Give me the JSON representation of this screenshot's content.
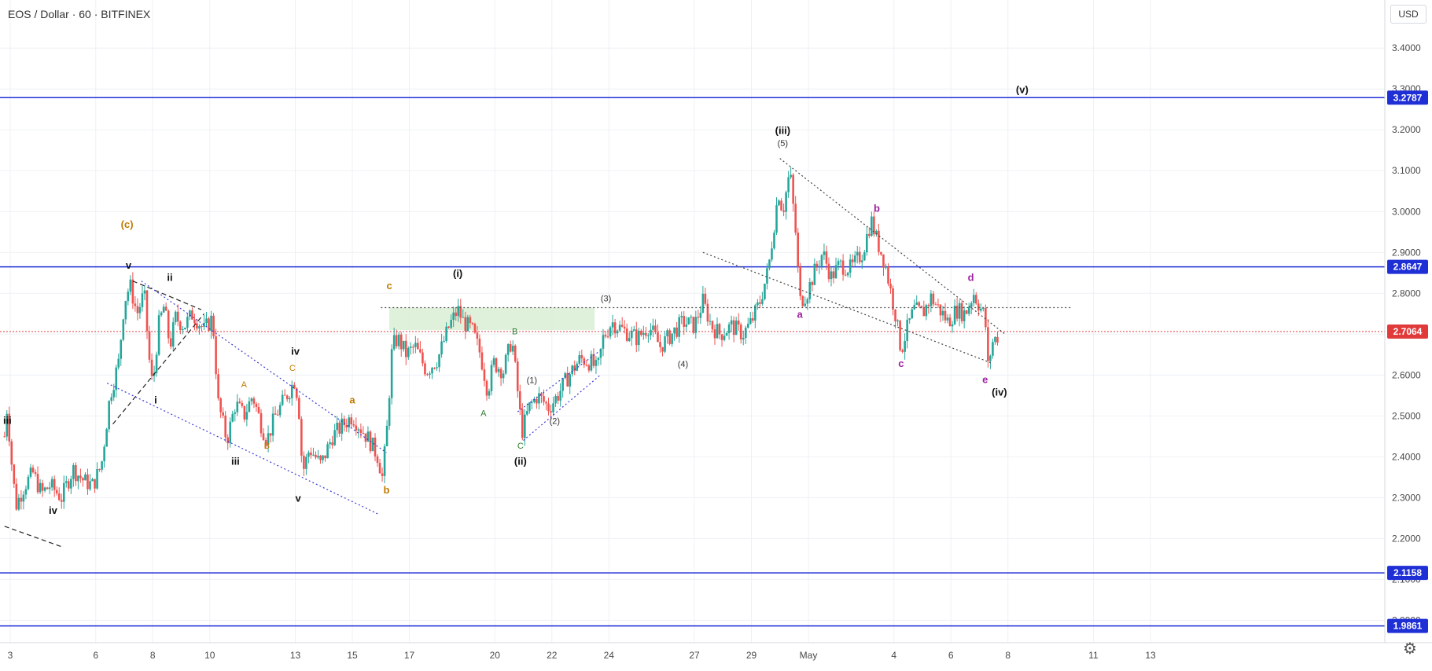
{
  "header": {
    "title": "EOS / Dollar · 60 · BITFINEX",
    "currency": "USD"
  },
  "chart_data": {
    "type": "candlestick",
    "title": "EOS / Dollar · 60 · BITFINEX",
    "ylim": [
      1.97,
      3.46
    ],
    "y_ticks": [
      "3.4000",
      "3.3000",
      "3.2000",
      "3.1000",
      "3.0000",
      "2.9000",
      "2.8000",
      "2.7000",
      "2.6000",
      "2.5000",
      "2.4000",
      "2.3000",
      "2.2000",
      "2.1000",
      "2.0000"
    ],
    "x_ticks": [
      {
        "label": "3",
        "day": 3
      },
      {
        "label": "6",
        "day": 6
      },
      {
        "label": "8",
        "day": 8
      },
      {
        "label": "10",
        "day": 10
      },
      {
        "label": "13",
        "day": 13
      },
      {
        "label": "15",
        "day": 15
      },
      {
        "label": "17",
        "day": 17
      },
      {
        "label": "20",
        "day": 20
      },
      {
        "label": "22",
        "day": 22
      },
      {
        "label": "24",
        "day": 24
      },
      {
        "label": "27",
        "day": 27
      },
      {
        "label": "29",
        "day": 29
      },
      {
        "label": "May",
        "day": 31
      },
      {
        "label": "4",
        "day": 34
      },
      {
        "label": "6",
        "day": 36
      },
      {
        "label": "8",
        "day": 38
      },
      {
        "label": "11",
        "day": 41
      },
      {
        "label": "13",
        "day": 43
      }
    ],
    "horizontal_levels": [
      {
        "value": 3.2787,
        "label": "3.2787",
        "color": "#1f2fd6"
      },
      {
        "value": 2.8647,
        "label": "2.8647",
        "color": "#1f2fd6"
      },
      {
        "value": 2.1158,
        "label": "2.1158",
        "color": "#1f2fd6"
      },
      {
        "value": 1.9861,
        "label": "1.9861",
        "color": "#1f2fd6"
      }
    ],
    "current_price": {
      "value": 2.7064,
      "label": "2.7064",
      "color": "#e03a3a"
    },
    "price_path": [
      [
        2.8,
        2.45
      ],
      [
        2.9,
        2.53
      ],
      [
        3.0,
        2.42
      ],
      [
        3.2,
        2.28
      ],
      [
        3.5,
        2.33
      ],
      [
        3.8,
        2.36
      ],
      [
        4.1,
        2.31
      ],
      [
        4.4,
        2.33
      ],
      [
        4.8,
        2.3
      ],
      [
        5.2,
        2.37
      ],
      [
        5.6,
        2.34
      ],
      [
        5.9,
        2.33
      ],
      [
        6.2,
        2.38
      ],
      [
        6.5,
        2.55
      ],
      [
        6.8,
        2.63
      ],
      [
        7.0,
        2.78
      ],
      [
        7.2,
        2.82
      ],
      [
        7.45,
        2.75
      ],
      [
        7.7,
        2.8
      ],
      [
        7.9,
        2.62
      ],
      [
        8.0,
        2.57
      ],
      [
        8.2,
        2.72
      ],
      [
        8.4,
        2.77
      ],
      [
        8.6,
        2.67
      ],
      [
        8.8,
        2.74
      ],
      [
        9.1,
        2.72
      ],
      [
        9.4,
        2.75
      ],
      [
        9.8,
        2.71
      ],
      [
        10.1,
        2.74
      ],
      [
        10.3,
        2.53
      ],
      [
        10.6,
        2.44
      ],
      [
        10.9,
        2.53
      ],
      [
        11.2,
        2.5
      ],
      [
        11.5,
        2.55
      ],
      [
        11.8,
        2.48
      ],
      [
        12.0,
        2.44
      ],
      [
        12.3,
        2.5
      ],
      [
        12.7,
        2.55
      ],
      [
        13.0,
        2.59
      ],
      [
        13.15,
        2.5
      ],
      [
        13.25,
        2.36
      ],
      [
        13.5,
        2.42
      ],
      [
        13.9,
        2.38
      ],
      [
        14.3,
        2.45
      ],
      [
        14.7,
        2.48
      ],
      [
        15.0,
        2.5
      ],
      [
        15.3,
        2.47
      ],
      [
        15.6,
        2.44
      ],
      [
        15.9,
        2.4
      ],
      [
        16.05,
        2.35
      ],
      [
        16.2,
        2.45
      ],
      [
        16.4,
        2.67
      ],
      [
        16.6,
        2.69
      ],
      [
        16.9,
        2.65
      ],
      [
        17.2,
        2.67
      ],
      [
        17.6,
        2.61
      ],
      [
        18.0,
        2.64
      ],
      [
        18.4,
        2.72
      ],
      [
        18.7,
        2.76
      ],
      [
        18.9,
        2.73
      ],
      [
        19.2,
        2.71
      ],
      [
        19.5,
        2.65
      ],
      [
        19.75,
        2.56
      ],
      [
        19.95,
        2.63
      ],
      [
        20.3,
        2.61
      ],
      [
        20.6,
        2.69
      ],
      [
        20.8,
        2.56
      ],
      [
        20.95,
        2.46
      ],
      [
        21.2,
        2.52
      ],
      [
        21.5,
        2.55
      ],
      [
        21.9,
        2.52
      ],
      [
        22.2,
        2.55
      ],
      [
        22.6,
        2.6
      ],
      [
        23.0,
        2.64
      ],
      [
        23.4,
        2.63
      ],
      [
        23.6,
        2.61
      ],
      [
        23.8,
        2.69
      ],
      [
        24.1,
        2.73
      ],
      [
        24.5,
        2.71
      ],
      [
        25.0,
        2.69
      ],
      [
        25.4,
        2.72
      ],
      [
        25.8,
        2.67
      ],
      [
        26.2,
        2.7
      ],
      [
        26.6,
        2.73
      ],
      [
        27.0,
        2.72
      ],
      [
        27.3,
        2.78
      ],
      [
        27.6,
        2.72
      ],
      [
        27.9,
        2.7
      ],
      [
        28.3,
        2.72
      ],
      [
        28.7,
        2.7
      ],
      [
        29.0,
        2.73
      ],
      [
        29.3,
        2.78
      ],
      [
        29.6,
        2.86
      ],
      [
        29.8,
        2.97
      ],
      [
        29.95,
        3.05
      ],
      [
        30.1,
        3.0
      ],
      [
        30.35,
        3.1
      ],
      [
        30.55,
        2.95
      ],
      [
        30.7,
        2.78
      ],
      [
        30.95,
        2.8
      ],
      [
        31.2,
        2.85
      ],
      [
        31.5,
        2.9
      ],
      [
        31.8,
        2.84
      ],
      [
        32.1,
        2.87
      ],
      [
        32.5,
        2.86
      ],
      [
        32.9,
        2.9
      ],
      [
        33.2,
        2.98
      ],
      [
        33.4,
        2.93
      ],
      [
        33.7,
        2.87
      ],
      [
        33.9,
        2.8
      ],
      [
        34.05,
        2.75
      ],
      [
        34.25,
        2.66
      ],
      [
        34.45,
        2.71
      ],
      [
        34.7,
        2.76
      ],
      [
        35.0,
        2.75
      ],
      [
        35.3,
        2.79
      ],
      [
        35.6,
        2.76
      ],
      [
        35.9,
        2.73
      ],
      [
        36.2,
        2.76
      ],
      [
        36.5,
        2.75
      ],
      [
        36.8,
        2.8
      ],
      [
        37.0,
        2.77
      ],
      [
        37.2,
        2.74
      ],
      [
        37.3,
        2.62
      ],
      [
        37.45,
        2.68
      ],
      [
        37.7,
        2.7
      ]
    ],
    "trendlines": [
      {
        "from": [
          7.3,
          2.83
        ],
        "to": [
          9.7,
          2.76
        ],
        "style": "dashed",
        "color": "#222222"
      },
      {
        "from": [
          6.6,
          2.48
        ],
        "to": [
          9.8,
          2.75
        ],
        "style": "dashed",
        "color": "#222222"
      },
      {
        "from": [
          2.8,
          2.23
        ],
        "to": [
          4.8,
          2.18
        ],
        "style": "dashed",
        "color": "#222222"
      },
      {
        "from": [
          7.6,
          2.83
        ],
        "to": [
          16.2,
          2.41
        ],
        "style": "dotted",
        "color": "#3b3bd6"
      },
      {
        "from": [
          6.4,
          2.58
        ],
        "to": [
          15.9,
          2.26
        ],
        "style": "dotted",
        "color": "#3b3bd6"
      },
      {
        "from": [
          20.8,
          2.51
        ],
        "to": [
          23.7,
          2.66
        ],
        "style": "dotted",
        "color": "#3b3bd6"
      },
      {
        "from": [
          21.0,
          2.44
        ],
        "to": [
          23.7,
          2.6
        ],
        "style": "dotted",
        "color": "#3b3bd6"
      },
      {
        "from": [
          30.0,
          3.13
        ],
        "to": [
          37.9,
          2.7
        ],
        "style": "dotted",
        "color": "#444444"
      },
      {
        "from": [
          27.3,
          2.9
        ],
        "to": [
          37.4,
          2.63
        ],
        "style": "dotted",
        "color": "#444444"
      },
      {
        "from": [
          16.0,
          2.765
        ],
        "to": [
          40.2,
          2.765
        ],
        "style": "dotted",
        "color": "#555555"
      }
    ],
    "zones": [
      {
        "x0": 16.3,
        "x1": 23.5,
        "y0": 2.71,
        "y1": 2.765,
        "color": "#d9efd3"
      }
    ],
    "annotations": [
      {
        "text": "iii",
        "x": 2.9,
        "y": 2.48,
        "color": "#111111",
        "bold": true
      },
      {
        "text": "iv",
        "x": 4.5,
        "y": 2.26,
        "color": "#111111",
        "bold": true
      },
      {
        "text": "(c)",
        "x": 7.1,
        "y": 2.96,
        "color": "#c07a00",
        "bold": true
      },
      {
        "text": "v",
        "x": 7.15,
        "y": 2.86,
        "color": "#111111",
        "bold": true
      },
      {
        "text": "ii",
        "x": 8.6,
        "y": 2.83,
        "color": "#111111",
        "bold": true
      },
      {
        "text": "i",
        "x": 8.1,
        "y": 2.53,
        "color": "#111111",
        "bold": true
      },
      {
        "text": "A",
        "x": 11.2,
        "y": 2.57,
        "color": "#c07a00",
        "bold": false
      },
      {
        "text": "C",
        "x": 12.9,
        "y": 2.61,
        "color": "#c07a00",
        "bold": false
      },
      {
        "text": "B",
        "x": 12.0,
        "y": 2.42,
        "color": "#c07a00",
        "bold": false
      },
      {
        "text": "iii",
        "x": 10.9,
        "y": 2.38,
        "color": "#111111",
        "bold": true
      },
      {
        "text": "iv",
        "x": 13.0,
        "y": 2.65,
        "color": "#111111",
        "bold": true
      },
      {
        "text": "v",
        "x": 13.1,
        "y": 2.29,
        "color": "#111111",
        "bold": true
      },
      {
        "text": "a",
        "x": 15.0,
        "y": 2.53,
        "color": "#c07a00",
        "bold": true
      },
      {
        "text": "b",
        "x": 16.2,
        "y": 2.31,
        "color": "#c07a00",
        "bold": true
      },
      {
        "text": "c",
        "x": 16.3,
        "y": 2.81,
        "color": "#c07a00",
        "bold": true
      },
      {
        "text": "(i)",
        "x": 18.7,
        "y": 2.84,
        "color": "#111111",
        "bold": true
      },
      {
        "text": "A",
        "x": 19.6,
        "y": 2.5,
        "color": "#2e7d32",
        "bold": false
      },
      {
        "text": "B",
        "x": 20.7,
        "y": 2.7,
        "color": "#2e7d32",
        "bold": false
      },
      {
        "text": "C",
        "x": 20.9,
        "y": 2.42,
        "color": "#2e7d32",
        "bold": false
      },
      {
        "text": "(ii)",
        "x": 20.9,
        "y": 2.38,
        "color": "#111111",
        "bold": true
      },
      {
        "text": "(1)",
        "x": 21.3,
        "y": 2.58,
        "color": "#333333",
        "bold": false
      },
      {
        "text": "(2)",
        "x": 22.1,
        "y": 2.48,
        "color": "#333333",
        "bold": false
      },
      {
        "text": "(3)",
        "x": 23.9,
        "y": 2.78,
        "color": "#333333",
        "bold": false
      },
      {
        "text": "(4)",
        "x": 26.6,
        "y": 2.62,
        "color": "#333333",
        "bold": false
      },
      {
        "text": "(iii)",
        "x": 30.1,
        "y": 3.19,
        "color": "#111111",
        "bold": true
      },
      {
        "text": "(5)",
        "x": 30.1,
        "y": 3.16,
        "color": "#333333",
        "bold": false
      },
      {
        "text": "a",
        "x": 30.7,
        "y": 2.74,
        "color": "#a020a0",
        "bold": true
      },
      {
        "text": "b",
        "x": 33.4,
        "y": 3.0,
        "color": "#a020a0",
        "bold": true
      },
      {
        "text": "c",
        "x": 34.25,
        "y": 2.62,
        "color": "#a020a0",
        "bold": true
      },
      {
        "text": "d",
        "x": 36.7,
        "y": 2.83,
        "color": "#a020a0",
        "bold": true
      },
      {
        "text": "e",
        "x": 37.2,
        "y": 2.58,
        "color": "#a020a0",
        "bold": true
      },
      {
        "text": "(iv)",
        "x": 37.7,
        "y": 2.55,
        "color": "#111111",
        "bold": true
      },
      {
        "text": "(v)",
        "x": 38.5,
        "y": 3.29,
        "color": "#111111",
        "bold": true
      }
    ],
    "grid": true
  }
}
